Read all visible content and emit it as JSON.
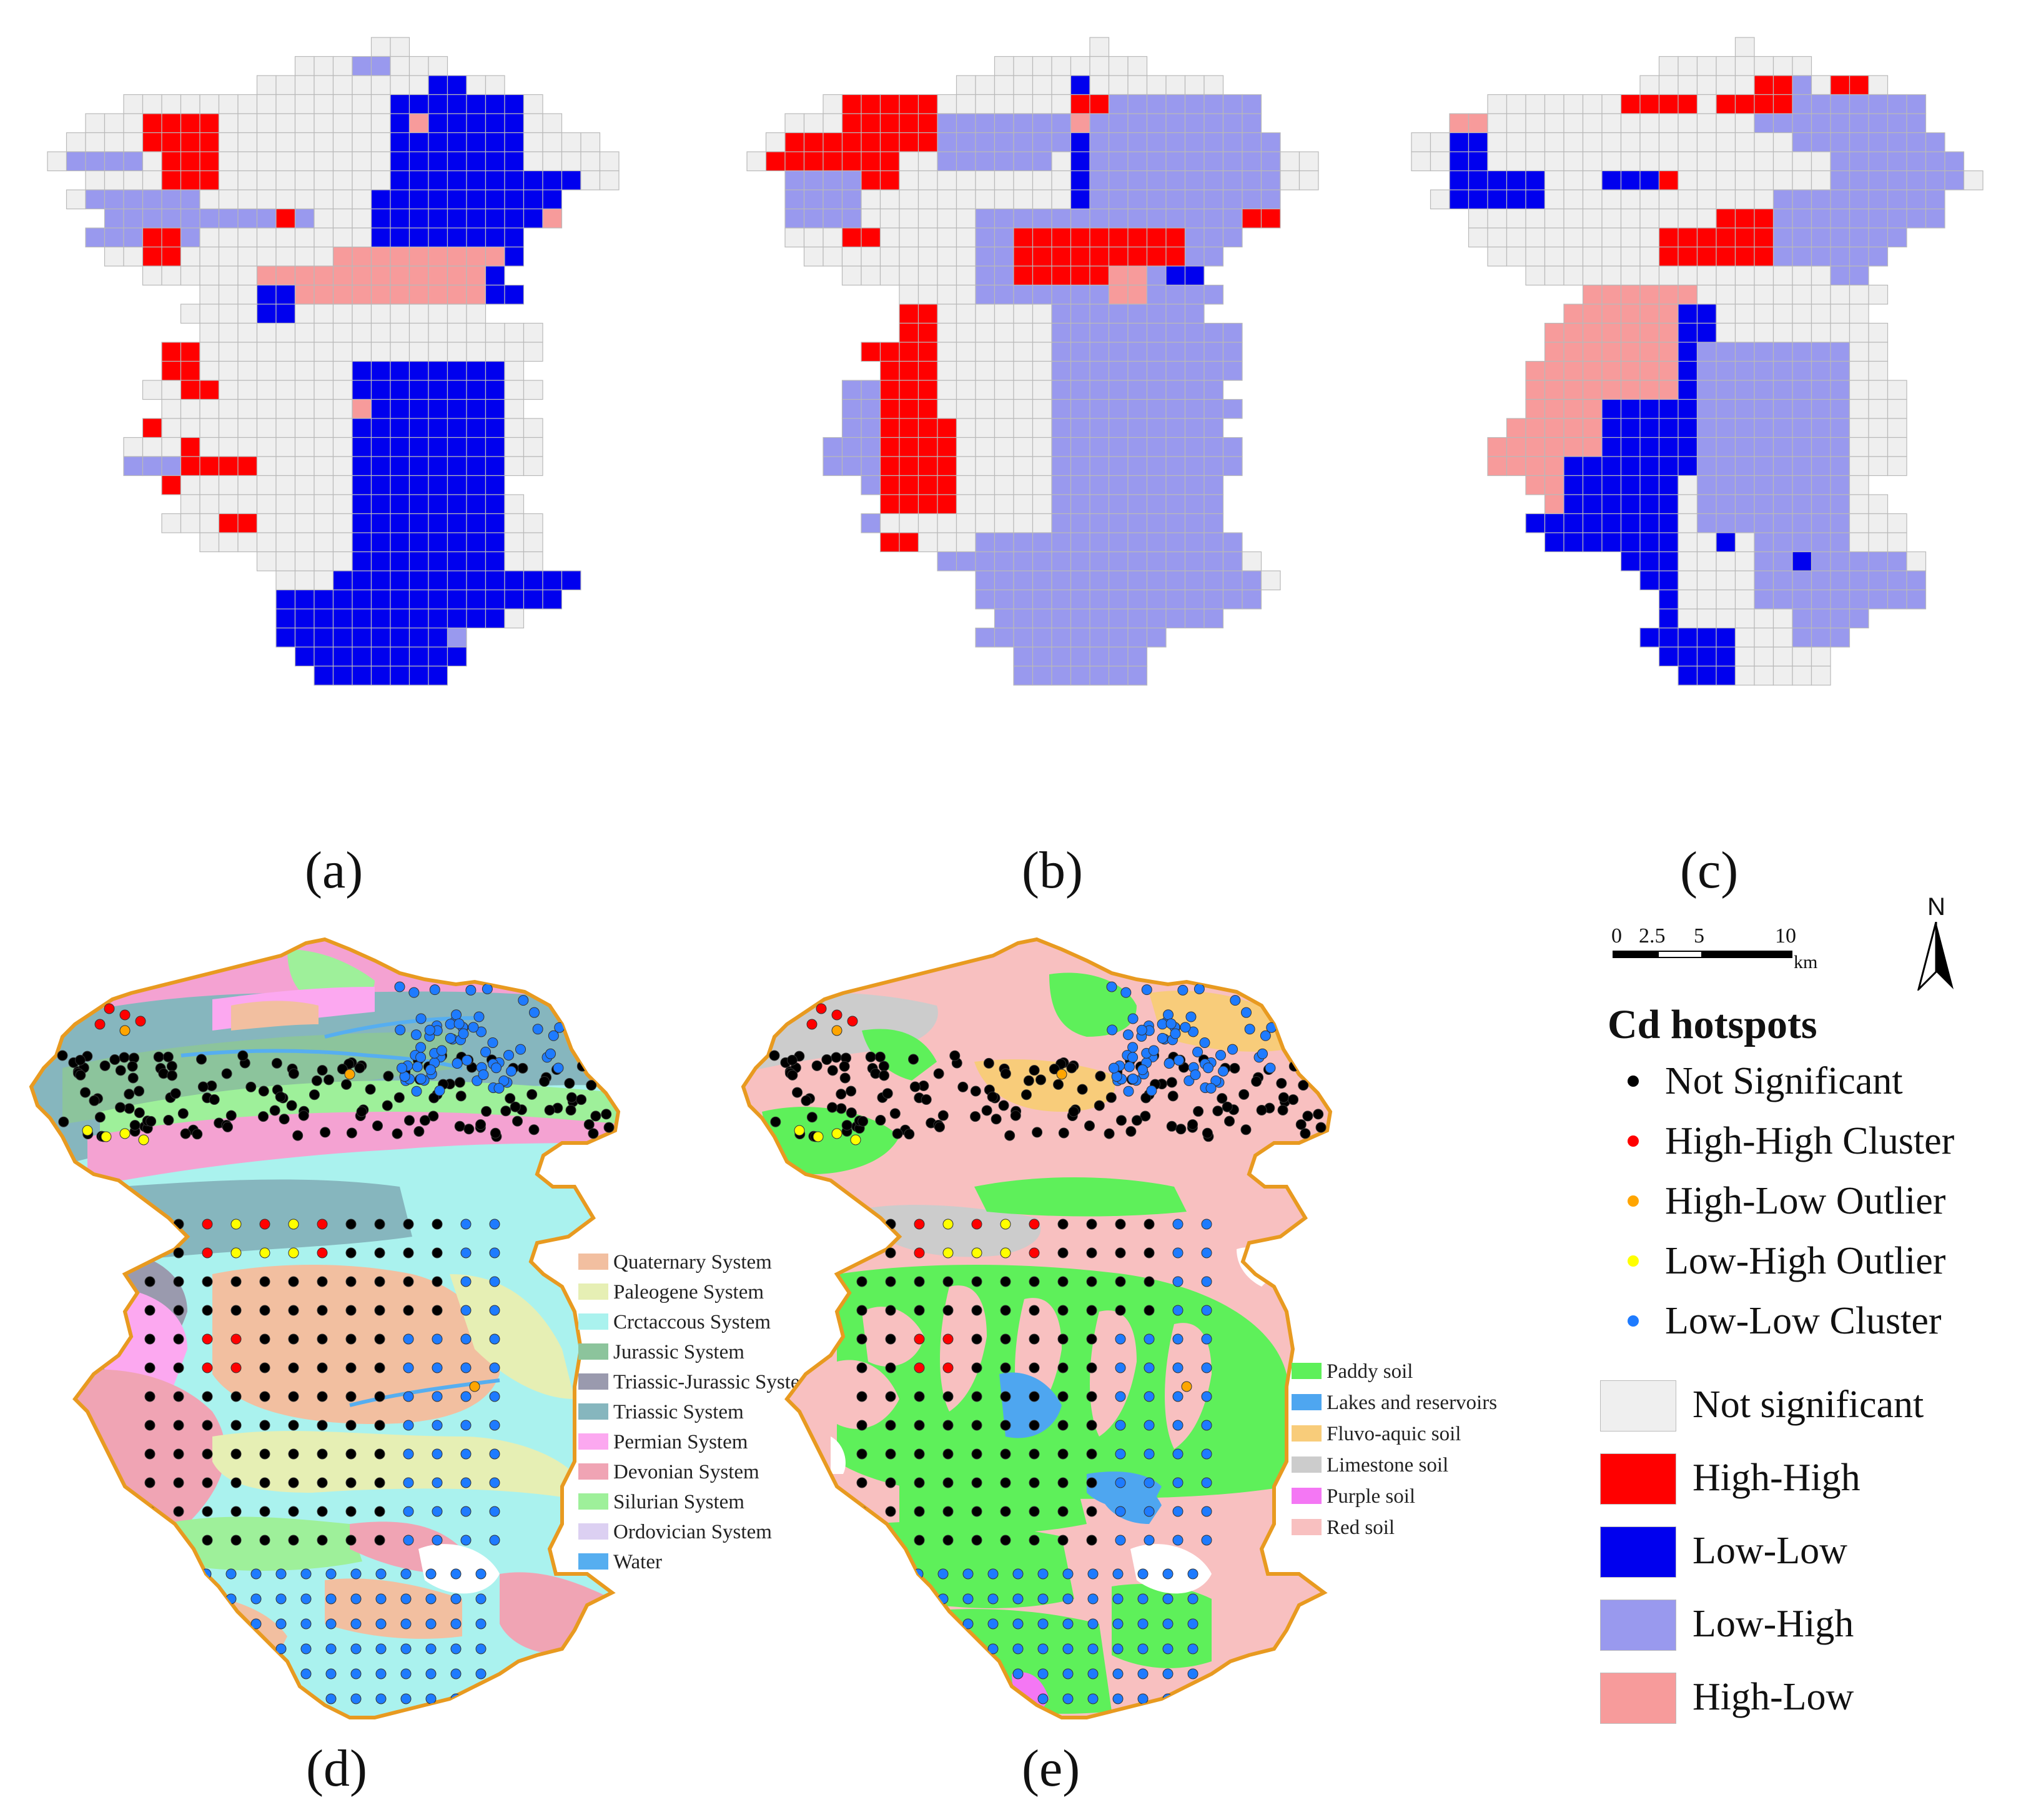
{
  "panels": {
    "a": "(a)",
    "b": "(b)",
    "c": "(c)",
    "d": "(d)",
    "e": "(e)"
  },
  "grid_colors": {
    "not_significant": "#efefef",
    "high_high": "#ff0000",
    "low_low": "#0000ee",
    "low_high": "#9999ee",
    "high_low": "#f79b9b"
  },
  "scale_bar": {
    "ticks": [
      "0",
      "2.5",
      "5",
      "10"
    ],
    "unit": "km"
  },
  "north_label": "N",
  "point_legend": {
    "title": "Cd hotspots",
    "items": [
      {
        "label": "Not Significant",
        "color": "#000000"
      },
      {
        "label": "High-High Cluster",
        "color": "#ff0000"
      },
      {
        "label": "High-Low Outlier",
        "color": "#ffa500"
      },
      {
        "label": "Low-High Outlier",
        "color": "#ffff00"
      },
      {
        "label": "Low-Low Cluster",
        "color": "#1e7bff"
      }
    ]
  },
  "cell_legend": {
    "items": [
      {
        "label": "Not significant",
        "color": "#efefef"
      },
      {
        "label": "High-High",
        "color": "#ff0000"
      },
      {
        "label": "Low-Low",
        "color": "#0000ee"
      },
      {
        "label": "Low-High",
        "color": "#9999ee"
      },
      {
        "label": "High-Low",
        "color": "#f79b9b"
      }
    ]
  },
  "geology_legend": [
    {
      "label": "Quaternary System",
      "color": "#f2bfa0"
    },
    {
      "label": "Paleogene System",
      "color": "#e6efb4"
    },
    {
      "label": "Crctaccous System",
      "color": "#aaf2ee"
    },
    {
      "label": "Jurassic System",
      "color": "#8cc49c"
    },
    {
      "label": "Triassic-Jurassic System",
      "color": "#9a9aae"
    },
    {
      "label": "Triassic System",
      "color": "#86b6be"
    },
    {
      "label": "Permian System",
      "color": "#fca8f0"
    },
    {
      "label": "Devonian System",
      "color": "#f0a4b4"
    },
    {
      "label": "Silurian System",
      "color": "#9ef09a"
    },
    {
      "label": "Ordovician System",
      "color": "#dcd0f2"
    },
    {
      "label": "Water",
      "color": "#56aef0"
    }
  ],
  "soil_legend": [
    {
      "label": "Paddy soil",
      "color": "#5ef05a"
    },
    {
      "label": "Lakes and reservoirs",
      "color": "#4ea6f0"
    },
    {
      "label": "Fluvo-aquic soil",
      "color": "#f8cc7a"
    },
    {
      "label": "Limestone soil",
      "color": "#cccccc"
    },
    {
      "label": "Purple soil",
      "color": "#f477f4"
    },
    {
      "label": "Red soil",
      "color": "#f8c0c0"
    }
  ],
  "map_colors": {
    "border": "#e89a20"
  }
}
